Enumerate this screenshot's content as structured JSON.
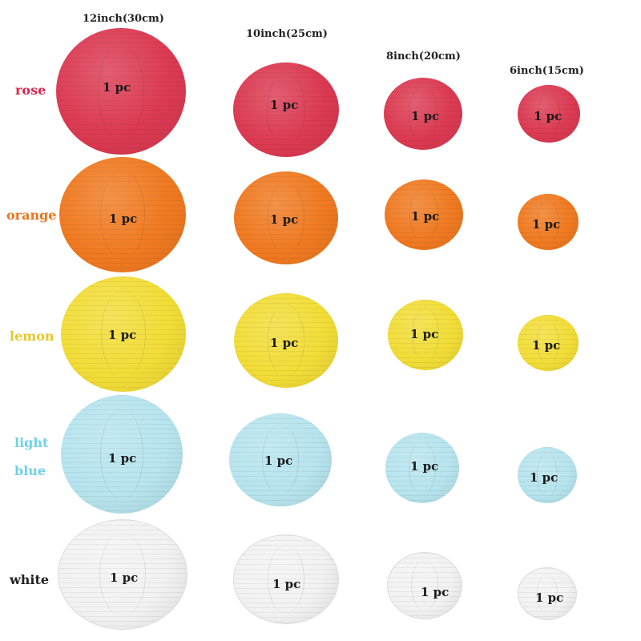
{
  "sizes": [
    "12inch(30cm)",
    "10inch(25cm)",
    "8inch(20cm)",
    "6inch(15cm)"
  ],
  "colors": {
    "rose": {
      "label": "rose",
      "hex": "#d9264f"
    },
    "orange": {
      "label": "orange",
      "hex": "#e8741e"
    },
    "lemon": {
      "label": "lemon",
      "hex": "#e6c72a"
    },
    "lightblue": {
      "line1": "light",
      "line2": "blue",
      "hex": "#6fd1e6"
    },
    "white": {
      "label": "white",
      "hex": "#222222"
    }
  },
  "qty_label": "1 pc"
}
